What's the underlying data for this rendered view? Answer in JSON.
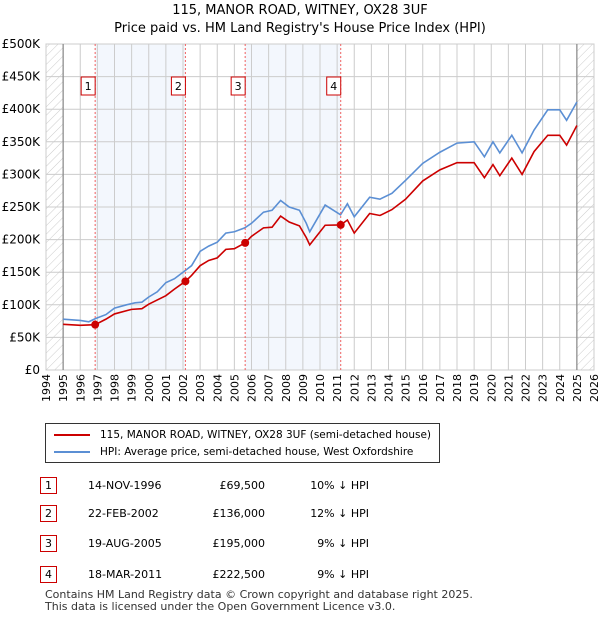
{
  "chart_data": {
    "type": "line",
    "title": "115, MANOR ROAD, WITNEY, OX28 3UF",
    "subtitle": "Price paid vs. HM Land Registry's House Price Index (HPI)",
    "xlim": [
      1994,
      2026
    ],
    "ylim": [
      0,
      500000
    ],
    "x_ticks": [
      "1994",
      "1995",
      "1996",
      "1997",
      "1998",
      "1999",
      "2000",
      "2001",
      "2002",
      "2003",
      "2004",
      "2005",
      "2006",
      "2007",
      "2008",
      "2009",
      "2010",
      "2011",
      "2012",
      "2013",
      "2014",
      "2015",
      "2016",
      "2017",
      "2018",
      "2019",
      "2020",
      "2021",
      "2022",
      "2023",
      "2024",
      "2025",
      "2026"
    ],
    "y_ticks": [
      {
        "v": 0,
        "label": "£0"
      },
      {
        "v": 50000,
        "label": "£50K"
      },
      {
        "v": 100000,
        "label": "£100K"
      },
      {
        "v": 150000,
        "label": "£150K"
      },
      {
        "v": 200000,
        "label": "£200K"
      },
      {
        "v": 250000,
        "label": "£250K"
      },
      {
        "v": 300000,
        "label": "£300K"
      },
      {
        "v": 350000,
        "label": "£350K"
      },
      {
        "v": 400000,
        "label": "£400K"
      },
      {
        "v": 450000,
        "label": "£450K"
      },
      {
        "v": 500000,
        "label": "£500K"
      }
    ],
    "grid": true,
    "series": [
      {
        "name": "115, MANOR ROAD, WITNEY, OX28 3UF (semi-detached house)",
        "color": "#cc0000",
        "points": [
          [
            1995,
            70
          ],
          [
            1996,
            68.5
          ],
          [
            1996.87,
            69.5
          ],
          [
            1997.5,
            78
          ],
          [
            1998,
            86
          ],
          [
            1999,
            93
          ],
          [
            1999.6,
            94
          ],
          [
            2000,
            101
          ],
          [
            2001,
            114
          ],
          [
            2001.5,
            124
          ],
          [
            2002.14,
            136
          ],
          [
            2002.5,
            145
          ],
          [
            2003,
            160
          ],
          [
            2003.5,
            168
          ],
          [
            2004,
            172
          ],
          [
            2004.5,
            185
          ],
          [
            2005,
            186
          ],
          [
            2005.63,
            195
          ],
          [
            2006,
            205
          ],
          [
            2006.7,
            218
          ],
          [
            2007.2,
            219
          ],
          [
            2007.7,
            236
          ],
          [
            2008.2,
            227
          ],
          [
            2008.8,
            221
          ],
          [
            2009.2,
            203
          ],
          [
            2009.4,
            192
          ],
          [
            2010.3,
            222
          ],
          [
            2011.21,
            222.5
          ],
          [
            2011.6,
            230
          ],
          [
            2012,
            210
          ],
          [
            2012.9,
            240
          ],
          [
            2013.5,
            237
          ],
          [
            2014.2,
            246
          ],
          [
            2015,
            262
          ],
          [
            2016,
            290
          ],
          [
            2017,
            307
          ],
          [
            2018,
            318
          ],
          [
            2019,
            318
          ],
          [
            2019.6,
            295
          ],
          [
            2020.1,
            315
          ],
          [
            2020.5,
            298
          ],
          [
            2021.2,
            325
          ],
          [
            2021.8,
            300
          ],
          [
            2022.5,
            335
          ],
          [
            2023.3,
            360
          ],
          [
            2024,
            360
          ],
          [
            2024.4,
            345
          ],
          [
            2025,
            375
          ]
        ]
      },
      {
        "name": "HPI: Average price, semi-detached house, West Oxfordshire",
        "color": "#5b8fd4",
        "points": [
          [
            1995,
            78
          ],
          [
            1995.5,
            77
          ],
          [
            1996,
            76
          ],
          [
            1996.5,
            74
          ],
          [
            1996.9,
            79
          ],
          [
            1997.5,
            85
          ],
          [
            1998,
            95
          ],
          [
            1998.7,
            100
          ],
          [
            1999.2,
            103
          ],
          [
            1999.6,
            104
          ],
          [
            2000,
            112
          ],
          [
            2000.5,
            120
          ],
          [
            2001,
            134
          ],
          [
            2001.5,
            140
          ],
          [
            2002,
            150
          ],
          [
            2002.5,
            160
          ],
          [
            2003,
            182
          ],
          [
            2003.5,
            190
          ],
          [
            2004,
            196
          ],
          [
            2004.5,
            210
          ],
          [
            2005,
            212
          ],
          [
            2005.6,
            218
          ],
          [
            2006,
            225
          ],
          [
            2006.7,
            242
          ],
          [
            2007.2,
            245
          ],
          [
            2007.7,
            260
          ],
          [
            2008.2,
            250
          ],
          [
            2008.8,
            245
          ],
          [
            2009.2,
            225
          ],
          [
            2009.4,
            212
          ],
          [
            2010.3,
            253
          ],
          [
            2011.2,
            238
          ],
          [
            2011.6,
            255
          ],
          [
            2012,
            235
          ],
          [
            2012.9,
            265
          ],
          [
            2013.5,
            262
          ],
          [
            2014.2,
            271
          ],
          [
            2015,
            291
          ],
          [
            2016,
            317
          ],
          [
            2017,
            334
          ],
          [
            2018,
            348
          ],
          [
            2019,
            350
          ],
          [
            2019.6,
            327
          ],
          [
            2020.1,
            350
          ],
          [
            2020.5,
            333
          ],
          [
            2021.2,
            360
          ],
          [
            2021.8,
            333
          ],
          [
            2022.5,
            368
          ],
          [
            2023.3,
            399
          ],
          [
            2024,
            399
          ],
          [
            2024.4,
            383
          ],
          [
            2025,
            411
          ]
        ]
      }
    ],
    "sales": [
      {
        "label": "1",
        "x": 1996.87,
        "price": 69500
      },
      {
        "label": "2",
        "x": 2002.14,
        "price": 136000
      },
      {
        "label": "3",
        "x": 2005.63,
        "price": 195000
      },
      {
        "label": "4",
        "x": 2011.21,
        "price": 222500
      }
    ],
    "shaded_ranges": [
      [
        1996.87,
        2002.14
      ],
      [
        2005.63,
        2011.21
      ]
    ],
    "hatched_ranges": [
      [
        1994,
        1995
      ],
      [
        2025,
        2026
      ]
    ]
  },
  "legend": [
    {
      "label": "115, MANOR ROAD, WITNEY, OX28 3UF (semi-detached house)",
      "color": "#cc0000"
    },
    {
      "label": "HPI: Average price, semi-detached house, West Oxfordshire",
      "color": "#5b8fd4"
    }
  ],
  "table": [
    {
      "num": "1",
      "date": "14-NOV-1996",
      "price": "£69,500",
      "hpi": "10% ↓ HPI"
    },
    {
      "num": "2",
      "date": "22-FEB-2002",
      "price": "£136,000",
      "hpi": "12% ↓ HPI"
    },
    {
      "num": "3",
      "date": "19-AUG-2005",
      "price": "£195,000",
      "hpi": "9% ↓ HPI"
    },
    {
      "num": "4",
      "date": "18-MAR-2011",
      "price": "£222,500",
      "hpi": "9% ↓ HPI"
    }
  ],
  "footer": [
    "Contains HM Land Registry data © Crown copyright and database right 2025.",
    "This data is licensed under the Open Government Licence v3.0."
  ]
}
